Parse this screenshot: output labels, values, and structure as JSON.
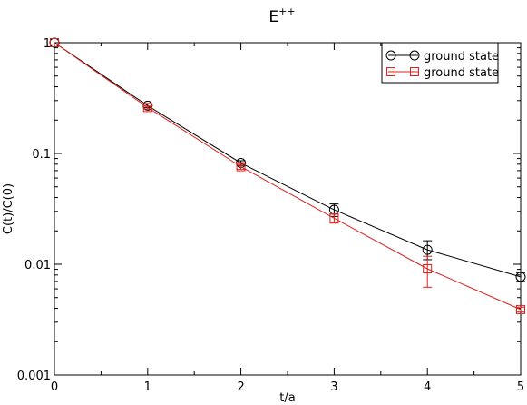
{
  "chart_data": {
    "type": "line",
    "title": "E",
    "title_superscript": "++",
    "xlabel": "t/a",
    "ylabel": "C(t)/C(0)",
    "xlim": [
      0,
      5
    ],
    "ylim": [
      0.001,
      1
    ],
    "yscale": "log",
    "x_ticks": [
      0,
      1,
      2,
      3,
      4,
      5
    ],
    "x_tick_labels": [
      "0",
      "1",
      "2",
      "3",
      "4",
      "5"
    ],
    "y_ticks": [
      0.001,
      0.01,
      0.1,
      1
    ],
    "y_tick_labels": [
      "0.001",
      "0.01",
      "0.1",
      "1"
    ],
    "grid": false,
    "legend_position": "top-right",
    "series": [
      {
        "name": "ground state",
        "color": "#000000",
        "marker": "circle",
        "x": [
          0,
          1,
          2,
          3,
          4,
          5
        ],
        "y": [
          1.0,
          0.27,
          0.082,
          0.031,
          0.0135,
          0.0077
        ],
        "err_low": [
          0,
          0.01,
          0.004,
          0.004,
          0.0025,
          0.0007
        ],
        "err_high": [
          0,
          0.01,
          0.004,
          0.004,
          0.0028,
          0.0007
        ]
      },
      {
        "name": "ground state",
        "color": "#e0201c",
        "marker": "square",
        "x": [
          0,
          1,
          2,
          3,
          4,
          5
        ],
        "y": [
          1.0,
          0.26,
          0.076,
          0.026,
          0.0091,
          0.0039
        ],
        "err_low": [
          0,
          0.008,
          0.004,
          0.0025,
          0.0029,
          0.0002
        ],
        "err_high": [
          0,
          0.008,
          0.004,
          0.0025,
          0.0027,
          0.0002
        ]
      }
    ]
  }
}
